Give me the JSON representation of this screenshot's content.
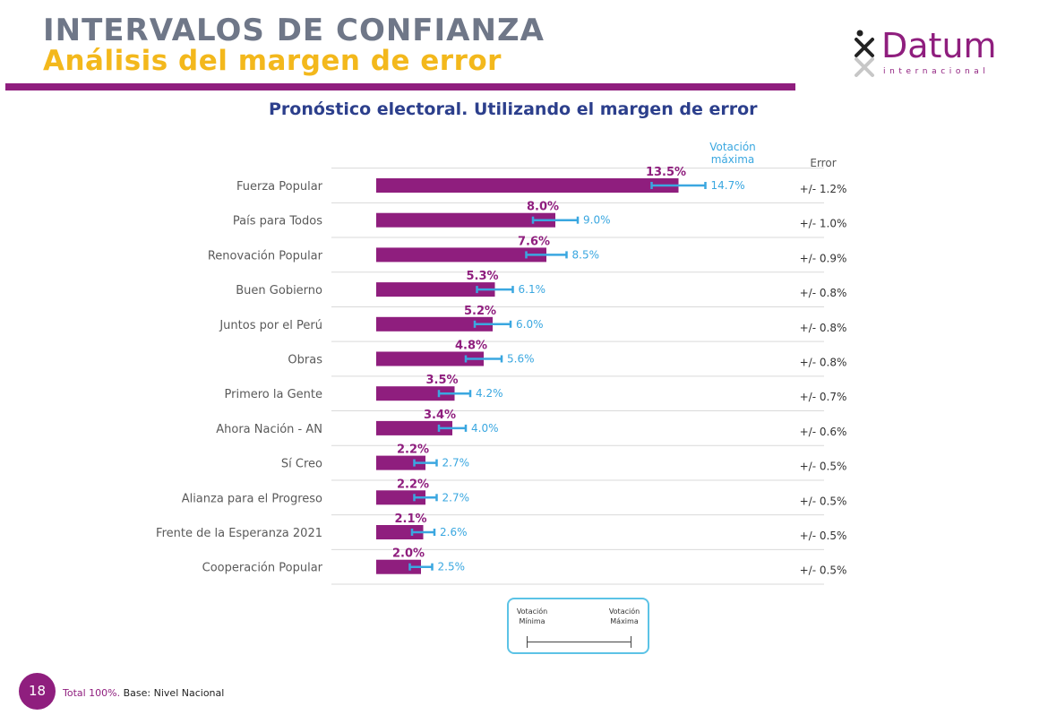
{
  "header": {
    "title": "INTERVALOS DE CONFIANZA",
    "subtitle": "Análisis del margen de error"
  },
  "logo": {
    "name": "Datum",
    "tagline": "internacional"
  },
  "chart_title": "Pronóstico electoral.  Utilizando el margen de error",
  "column_headers": {
    "max_vote": "Votación máxima",
    "error": "Error"
  },
  "chart_data": {
    "type": "bar",
    "title": "Pronóstico electoral.  Utilizando el margen de error",
    "orientation": "horizontal",
    "xlim": [
      0,
      16
    ],
    "grid": false,
    "categories": [
      "Fuerza Popular",
      "País para Todos",
      "Renovación Popular",
      "Buen Gobierno",
      "Juntos por el Perú",
      "Obras",
      "Primero la Gente",
      "Ahora Nación - AN",
      "Sí Creo",
      "Alianza para el Progreso",
      "Frente de la Esperanza 2021",
      "Cooperación Popular"
    ],
    "values": [
      13.5,
      8.0,
      7.6,
      5.3,
      5.2,
      4.8,
      3.5,
      3.4,
      2.2,
      2.2,
      2.1,
      2.0
    ],
    "value_labels": [
      "13.5%",
      "8.0%",
      "7.6%",
      "5.3%",
      "5.2%",
      "4.8%",
      "3.5%",
      "3.4%",
      "2.2%",
      "2.2%",
      "2.1%",
      "2.0%"
    ],
    "max_values": [
      14.7,
      9.0,
      8.5,
      6.1,
      6.0,
      5.6,
      4.2,
      4.0,
      2.7,
      2.7,
      2.6,
      2.5
    ],
    "max_labels": [
      "14.7%",
      "9.0%",
      "8.5%",
      "6.1%",
      "6.0%",
      "5.6%",
      "4.2%",
      "4.0%",
      "2.7%",
      "2.7%",
      "2.6%",
      "2.5%"
    ],
    "errors": [
      1.2,
      1.0,
      0.9,
      0.8,
      0.8,
      0.8,
      0.7,
      0.6,
      0.5,
      0.5,
      0.5,
      0.5
    ],
    "error_labels": [
      "+/- 1.2%",
      "+/- 1.0%",
      "+/- 0.9%",
      "+/- 0.8%",
      "+/- 0.8%",
      "+/- 0.8%",
      "+/- 0.7%",
      "+/- 0.6%",
      "+/- 0.5%",
      "+/- 0.5%",
      "+/- 0.5%",
      "+/- 0.5%"
    ],
    "colors": {
      "bar": "#8f1e7e",
      "error_bar": "#3aa7e0"
    }
  },
  "legend": {
    "min_label": "Votación Mínima",
    "max_label": "Votación Máxima"
  },
  "footer": {
    "page_number": "18",
    "note_highlight": "Total 100%.",
    "note_rest": " Base:  Nivel Nacional"
  },
  "colors": {
    "primary_purple": "#8f1e7e",
    "accent_blue": "#3aa7e0",
    "title_gray": "#6f7788",
    "title_yellow": "#f3b81c",
    "subtitle_navy": "#2c3f8c"
  }
}
